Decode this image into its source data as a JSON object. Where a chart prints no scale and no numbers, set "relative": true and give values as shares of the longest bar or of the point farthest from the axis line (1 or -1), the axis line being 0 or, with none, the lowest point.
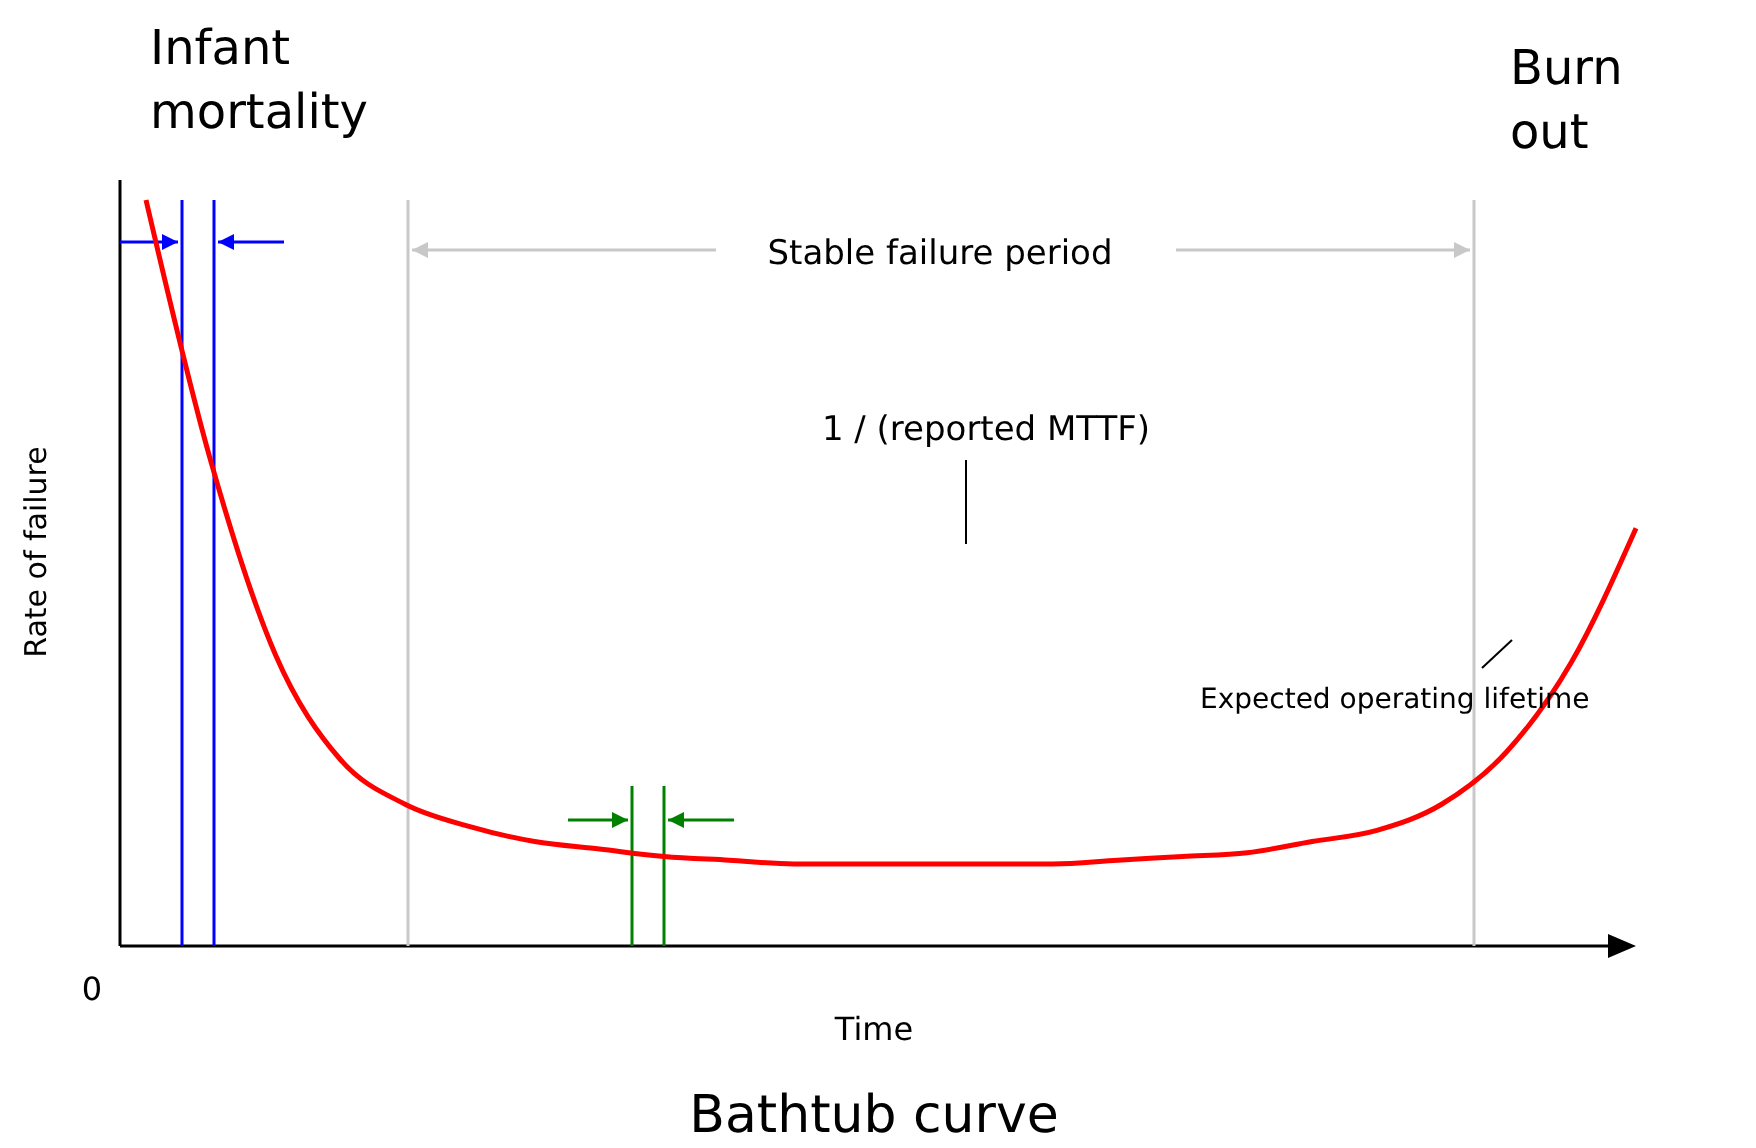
{
  "chart_data": {
    "type": "line",
    "title": "Bathtub curve",
    "xlabel": "Time",
    "ylabel": "Rate of failure",
    "relative": true,
    "categories": [
      null,
      null,
      null,
      null,
      null,
      null,
      null,
      null,
      null,
      null,
      null,
      null,
      null,
      null,
      null,
      null,
      null,
      null,
      null,
      null,
      null,
      null,
      null,
      null
    ],
    "series": [
      {
        "color": "#ff0000",
        "values": [
          1,
          0.65,
          0.39,
          0.25,
          0.19,
          0.16,
          0.14,
          0.13,
          0.12,
          0.115,
          0.11,
          0.11,
          0.11,
          0.11,
          0.11,
          0.115,
          0.12,
          0.125,
          0.14,
          0.155,
          0.19,
          0.26,
          0.38,
          0.56
        ]
      }
    ],
    "annotations": [
      "Infant mortality",
      "Burn out",
      "Stable failure period",
      "1 / (reported MTTF)",
      "Expected operating lifetime",
      "0"
    ]
  }
}
